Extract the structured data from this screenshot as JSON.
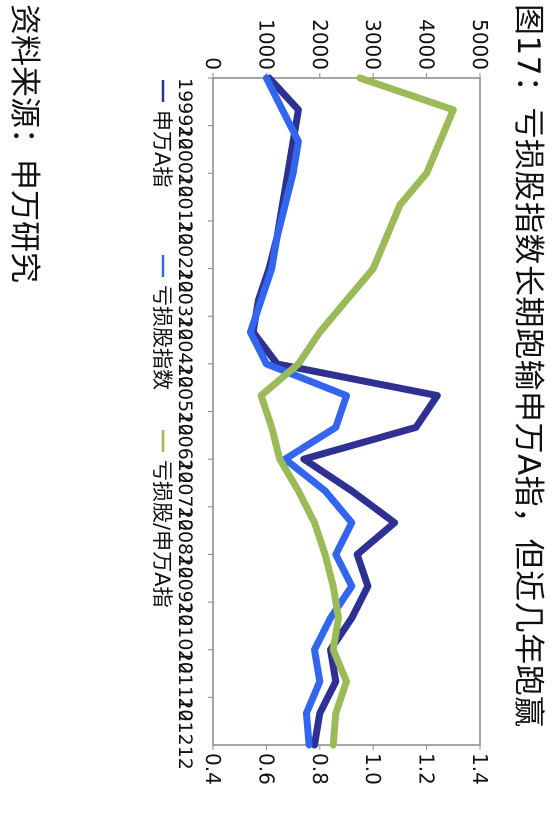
{
  "title": "图17：亏损股指数长期跑输申万A指，但近几年跑赢",
  "source": "资料来源：申万研究",
  "chart_data": {
    "type": "line",
    "title": "图17：亏损股指数长期跑输申万A指，但近几年跑赢",
    "x_ticks": [
      "199912",
      "200012",
      "200112",
      "200212",
      "200312",
      "200412",
      "200512",
      "200612",
      "200712",
      "200812",
      "200912",
      "201012",
      "201112",
      "201212"
    ],
    "y_left": {
      "lim": [
        0,
        5000
      ],
      "ticks": [
        0,
        1000,
        2000,
        3000,
        4000,
        5000
      ]
    },
    "y_right": {
      "lim": [
        0.4,
        1.4
      ],
      "ticks": [
        "0.4",
        "0.6",
        "0.8",
        "1.0",
        "1.2",
        "1.4"
      ]
    },
    "grid": false,
    "legend_position": "bottom",
    "series": [
      {
        "name": "申万A指",
        "axis": "left",
        "color": "#2e3192",
        "values": [
          1050,
          1600,
          1500,
          1400,
          1300,
          1200,
          1050,
          850,
          750,
          1200,
          4200,
          3800,
          1700,
          2600,
          3400,
          2700,
          2900,
          2600,
          2200,
          2300,
          2000,
          1900
        ]
      },
      {
        "name": "亏损股指数",
        "axis": "left",
        "color": "#3366ee",
        "values": [
          1000,
          1300,
          1600,
          1500,
          1350,
          1200,
          1100,
          900,
          700,
          1000,
          2500,
          2300,
          1350,
          2100,
          2600,
          2300,
          2600,
          2200,
          1900,
          2000,
          1750,
          1800
        ]
      },
      {
        "name": "亏损股/申万A指",
        "axis": "right",
        "color": "#9bbb59",
        "values": [
          0.95,
          1.3,
          1.25,
          1.2,
          1.1,
          1.05,
          1.0,
          0.9,
          0.8,
          0.72,
          0.58,
          0.62,
          0.65,
          0.72,
          0.78,
          0.82,
          0.85,
          0.87,
          0.85,
          0.9,
          0.86,
          0.85
        ]
      }
    ]
  }
}
